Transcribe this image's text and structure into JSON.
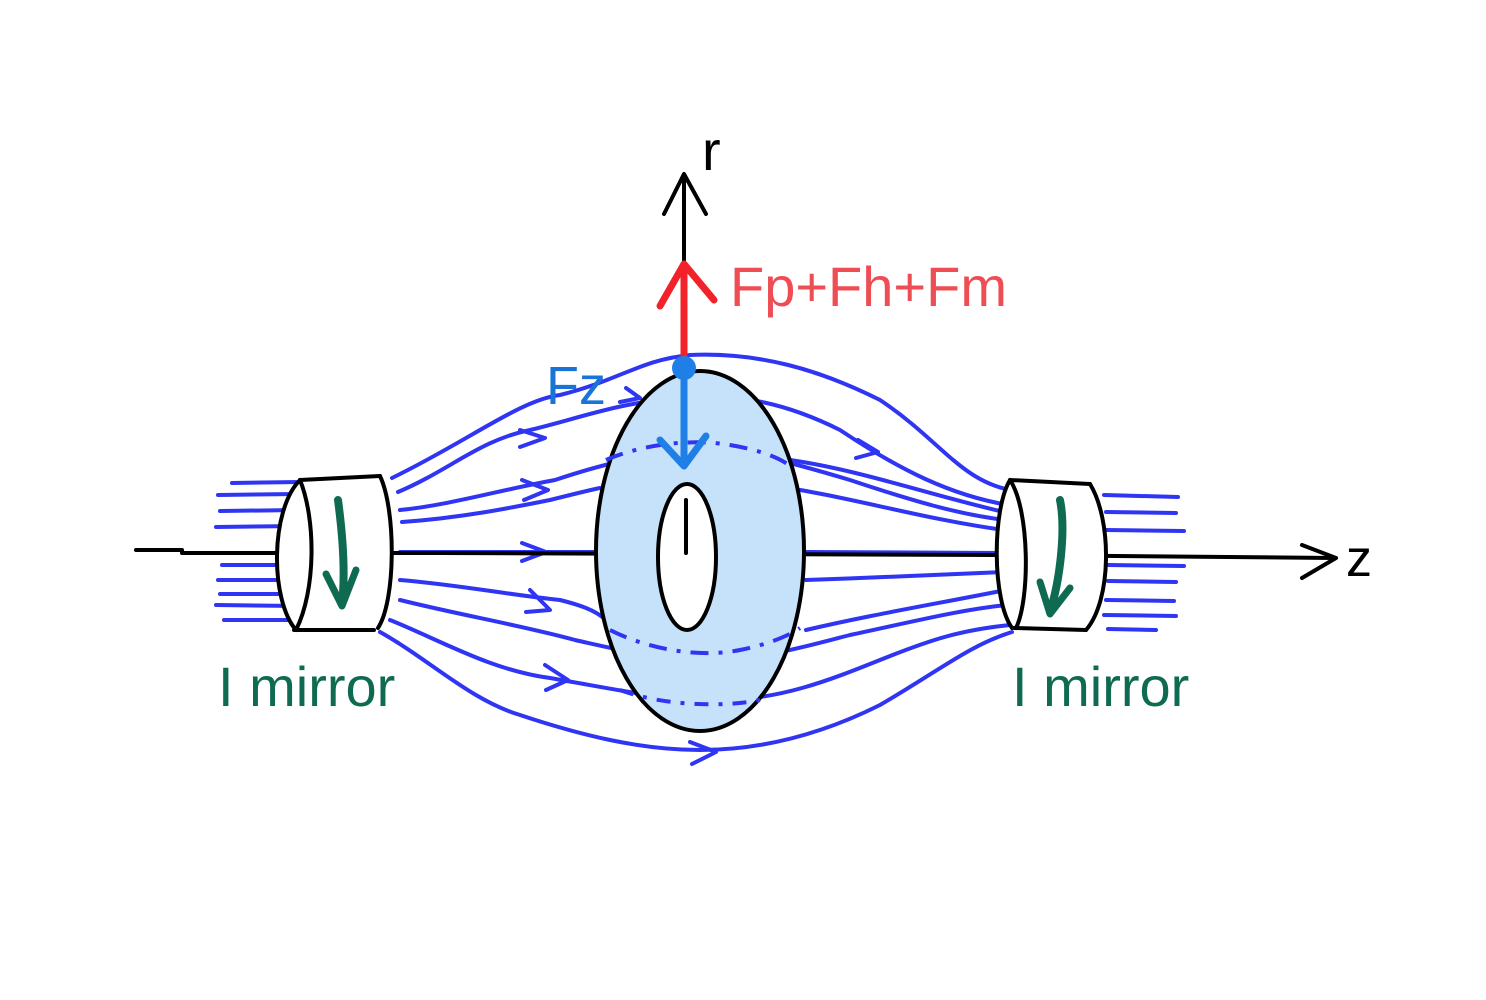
{
  "labels": {
    "r_axis": "r",
    "z_axis": "z",
    "force_radial": "Fp+Fh+Fm",
    "force_axial": "Fz",
    "left_coil": "I mirror",
    "right_coil": "I mirror"
  },
  "colors": {
    "background": "#ffffff",
    "axes": "#000000",
    "field_lines": "#2f35f2",
    "torus_fill": "#c6e2fb",
    "force_radial": "#f2222a",
    "force_radial_text": "#ef4d54",
    "force_axial": "#1f7fe6",
    "force_axial_text": "#1a74d6",
    "coil_current": "#0e6a50",
    "coil_label": "#0e6a50"
  }
}
